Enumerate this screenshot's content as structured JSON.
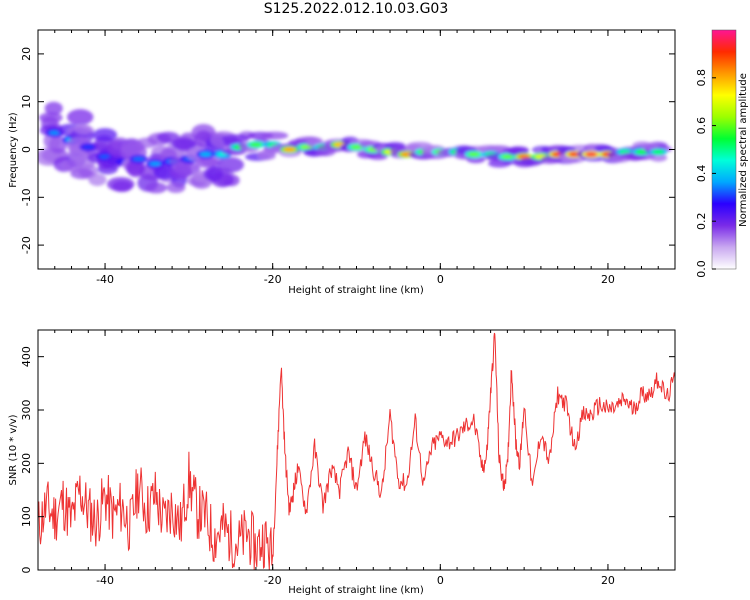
{
  "figure": {
    "title": "S125.2022.012.10.03.G03"
  },
  "chart_data": [
    {
      "type": "heatmap",
      "xlabel": "Height of straight line (km)",
      "ylabel": "Frequency (Hz)",
      "xlim": [
        -48,
        28
      ],
      "ylim": [
        -25,
        25
      ],
      "xticks": [
        -40,
        -20,
        0,
        20
      ],
      "yticks": [
        -20,
        -10,
        0,
        10,
        20
      ],
      "colorbar": {
        "label": "Normalized spectral amplitude",
        "range": [
          0,
          1
        ],
        "ticks": [
          "0.0",
          "0.2",
          "0.4",
          "0.6",
          "0.8"
        ],
        "colors": [
          "#ffffff",
          "#c9a8f0",
          "#7a2be8",
          "#2a00ff",
          "#00a8ff",
          "#00ffd9",
          "#00ff33",
          "#9cff00",
          "#ffff00",
          "#ff9900",
          "#ff2a00",
          "#ff1493"
        ]
      },
      "ridge": [
        {
          "x": -46,
          "f": 3.5,
          "a": 0.35
        },
        {
          "x": -44,
          "f": 2.0,
          "a": 0.38
        },
        {
          "x": -42,
          "f": 0.5,
          "a": 0.3
        },
        {
          "x": -40,
          "f": -1.5,
          "a": 0.32
        },
        {
          "x": -38,
          "f": -2.5,
          "a": 0.28
        },
        {
          "x": -36,
          "f": -2.0,
          "a": 0.33
        },
        {
          "x": -34,
          "f": -3.0,
          "a": 0.36
        },
        {
          "x": -32,
          "f": -2.5,
          "a": 0.34
        },
        {
          "x": -30,
          "f": -2.0,
          "a": 0.32
        },
        {
          "x": -28,
          "f": -1.0,
          "a": 0.38
        },
        {
          "x": -26,
          "f": -1.0,
          "a": 0.45
        },
        {
          "x": -24,
          "f": 0.5,
          "a": 0.55
        },
        {
          "x": -22,
          "f": 1.0,
          "a": 0.58
        },
        {
          "x": -20,
          "f": 1.0,
          "a": 0.5
        },
        {
          "x": -18,
          "f": 0.0,
          "a": 0.8
        },
        {
          "x": -16,
          "f": 0.5,
          "a": 0.62
        },
        {
          "x": -14,
          "f": 0.5,
          "a": 0.55
        },
        {
          "x": -12,
          "f": 1.0,
          "a": 0.78
        },
        {
          "x": -10,
          "f": 0.5,
          "a": 0.6
        },
        {
          "x": -8,
          "f": 0.0,
          "a": 0.62
        },
        {
          "x": -6,
          "f": -0.5,
          "a": 0.7
        },
        {
          "x": -4,
          "f": -1.0,
          "a": 0.82
        },
        {
          "x": -2,
          "f": -0.5,
          "a": 0.58
        },
        {
          "x": 0,
          "f": -0.5,
          "a": 0.6
        },
        {
          "x": 2,
          "f": -0.5,
          "a": 0.55
        },
        {
          "x": 4,
          "f": -1.0,
          "a": 0.6
        },
        {
          "x": 6,
          "f": -1.0,
          "a": 0.5
        },
        {
          "x": 8,
          "f": -1.5,
          "a": 0.6
        },
        {
          "x": 10,
          "f": -1.5,
          "a": 0.85
        },
        {
          "x": 12,
          "f": -1.5,
          "a": 0.7
        },
        {
          "x": 14,
          "f": -1.0,
          "a": 0.92
        },
        {
          "x": 16,
          "f": -1.0,
          "a": 0.93
        },
        {
          "x": 18,
          "f": -1.0,
          "a": 0.95
        },
        {
          "x": 20,
          "f": -1.0,
          "a": 0.92
        },
        {
          "x": 22,
          "f": -0.5,
          "a": 0.5
        },
        {
          "x": 24,
          "f": -0.5,
          "a": 0.55
        },
        {
          "x": 26,
          "f": -0.5,
          "a": 0.52
        }
      ]
    },
    {
      "type": "line",
      "xlabel": "Height of straight line (km)",
      "ylabel": "SNR (10 * v/v)",
      "xlim": [
        -48,
        28
      ],
      "ylim": [
        0,
        450
      ],
      "xticks": [
        -40,
        -20,
        0,
        20
      ],
      "yticks": [
        0,
        100,
        200,
        300,
        400
      ],
      "color": "#ee3333",
      "x": [
        -48,
        -47,
        -46,
        -45,
        -44,
        -43,
        -42,
        -41,
        -40,
        -39,
        -38,
        -37,
        -36,
        -35,
        -34,
        -33,
        -32,
        -31,
        -30,
        -29,
        -28,
        -27,
        -26,
        -25,
        -24,
        -23,
        -22,
        -21,
        -20,
        -19.5,
        -19,
        -18.5,
        -18,
        -17.5,
        -17,
        -16,
        -15,
        -14,
        -13,
        -12,
        -11,
        -10,
        -9,
        -8,
        -7,
        -6,
        -5,
        -4,
        -3,
        -2,
        -1,
        0,
        1,
        2,
        3,
        4,
        5,
        5.5,
        6,
        6.5,
        7,
        7.5,
        8,
        8.5,
        9,
        9.5,
        10,
        11,
        12,
        13,
        14,
        15,
        16,
        17,
        18,
        19,
        20,
        21,
        22,
        23,
        24,
        25,
        26,
        27,
        28
      ],
      "values": [
        80,
        120,
        100,
        130,
        90,
        150,
        110,
        90,
        140,
        100,
        120,
        80,
        160,
        110,
        140,
        90,
        120,
        80,
        170,
        110,
        100,
        60,
        80,
        60,
        50,
        70,
        40,
        60,
        25,
        200,
        385,
        210,
        110,
        150,
        190,
        110,
        230,
        120,
        190,
        150,
        220,
        150,
        250,
        190,
        140,
        290,
        170,
        160,
        280,
        160,
        230,
        250,
        240,
        250,
        270,
        280,
        190,
        210,
        330,
        445,
        210,
        160,
        190,
        380,
        240,
        200,
        310,
        150,
        260,
        200,
        330,
        310,
        230,
        290,
        290,
        310,
        300,
        305,
        320,
        300,
        330,
        330,
        360,
        320,
        360
      ]
    }
  ]
}
